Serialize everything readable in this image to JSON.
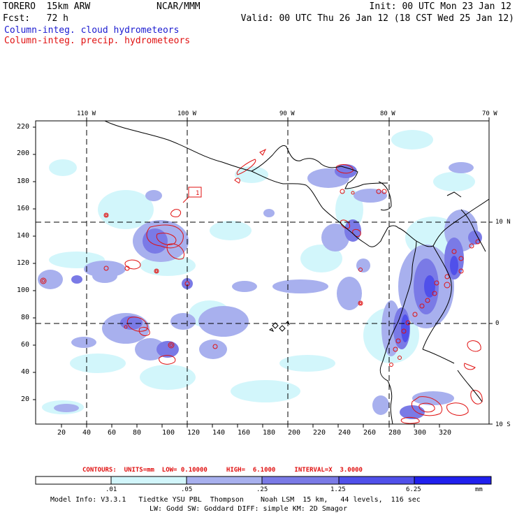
{
  "header": {
    "model": "TORERO  15km ARW",
    "org": "NCAR/MMM",
    "init": "Init: 00 UTC Mon 23 Jan 12",
    "fcst": "Fcst:   72 h",
    "valid": "Valid: 00 UTC Thu 26 Jan 12 (18 CST Wed 25 Jan 12)",
    "field1": "Column-integ. cloud hydrometeors",
    "field2": "Column-integ. precip. hydrometeors"
  },
  "map": {
    "top_lon_labels": [
      "110 W",
      "100 W",
      "90 W",
      "80 W",
      "70 W"
    ],
    "right_lat_labels": [
      "10 N",
      "0",
      "10 S"
    ],
    "y_ticks": [
      "220",
      "200",
      "180",
      "160",
      "140",
      "120",
      "100",
      "80",
      "60",
      "40",
      "20"
    ],
    "x_ticks": [
      "20",
      "40",
      "60",
      "80",
      "100",
      "120",
      "140",
      "160",
      "180",
      "200",
      "220",
      "240",
      "260",
      "280",
      "300",
      "320"
    ],
    "box_label": "1"
  },
  "contours_info": {
    "text": "CONTOURS:  UNITS=mm  LOW= 0.10000     HIGH=  6.1000     INTERVAL=X  3.0000"
  },
  "colorbar": {
    "labels": [
      ".01",
      ".05",
      ".25",
      "1.25",
      "6.25"
    ],
    "unit": "mm",
    "colors": [
      "#ffffff",
      "#d2f6fb",
      "#a8b0ee",
      "#7a7ae6",
      "#5050ea",
      "#2020ee"
    ]
  },
  "footer": {
    "line1": "Model Info: V3.3.1   Tiedtke YSU PBL  Thompson    Noah LSM  15 km,   44 levels,  116 sec",
    "line2": "LW: Godd SW: Goddard DIFF: simple KM: 2D Smagor"
  },
  "colors": {
    "cloud_label": "#1b1bd0",
    "precip_label": "#e01010",
    "coast": "#000000"
  }
}
